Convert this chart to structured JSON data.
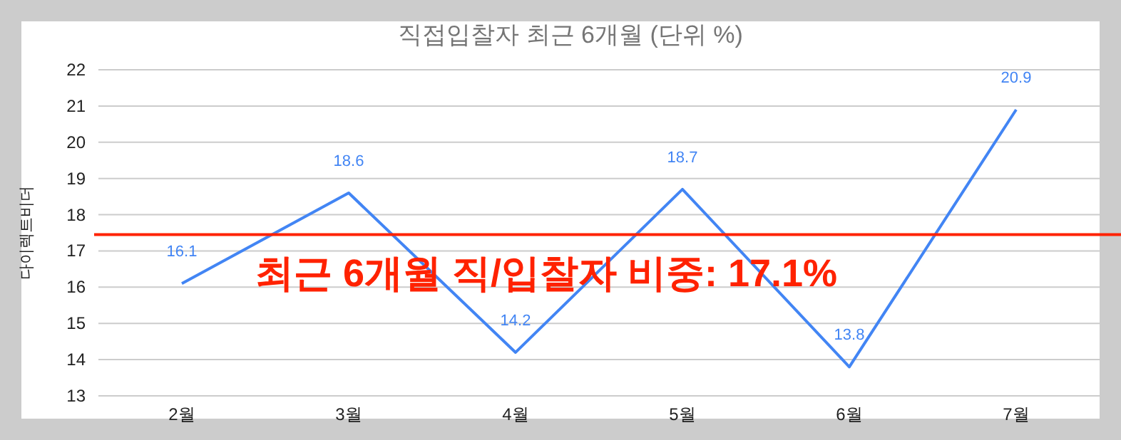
{
  "chart_data": {
    "type": "line",
    "title": "직접입찰자 최근 6개월 (단위 %)",
    "ylabel": "다이렉트비더",
    "categories": [
      "2월",
      "3월",
      "4월",
      "5월",
      "6월",
      "7월"
    ],
    "series": [
      {
        "color": "#4285f4",
        "values": [
          16.1,
          18.6,
          14.2,
          18.7,
          13.8,
          20.9
        ]
      }
    ],
    "ylim": [
      13,
      22
    ],
    "yticks": [
      13,
      14,
      15,
      16,
      17,
      18,
      19,
      20,
      21,
      22
    ],
    "grid": "y",
    "data_labels": true,
    "ref_lines": [
      {
        "axis": "y",
        "value": 17.45,
        "color": "#ff2200"
      }
    ],
    "annotations": [
      "최근 6개월 직/입찰자 비중: 17.1%"
    ]
  }
}
